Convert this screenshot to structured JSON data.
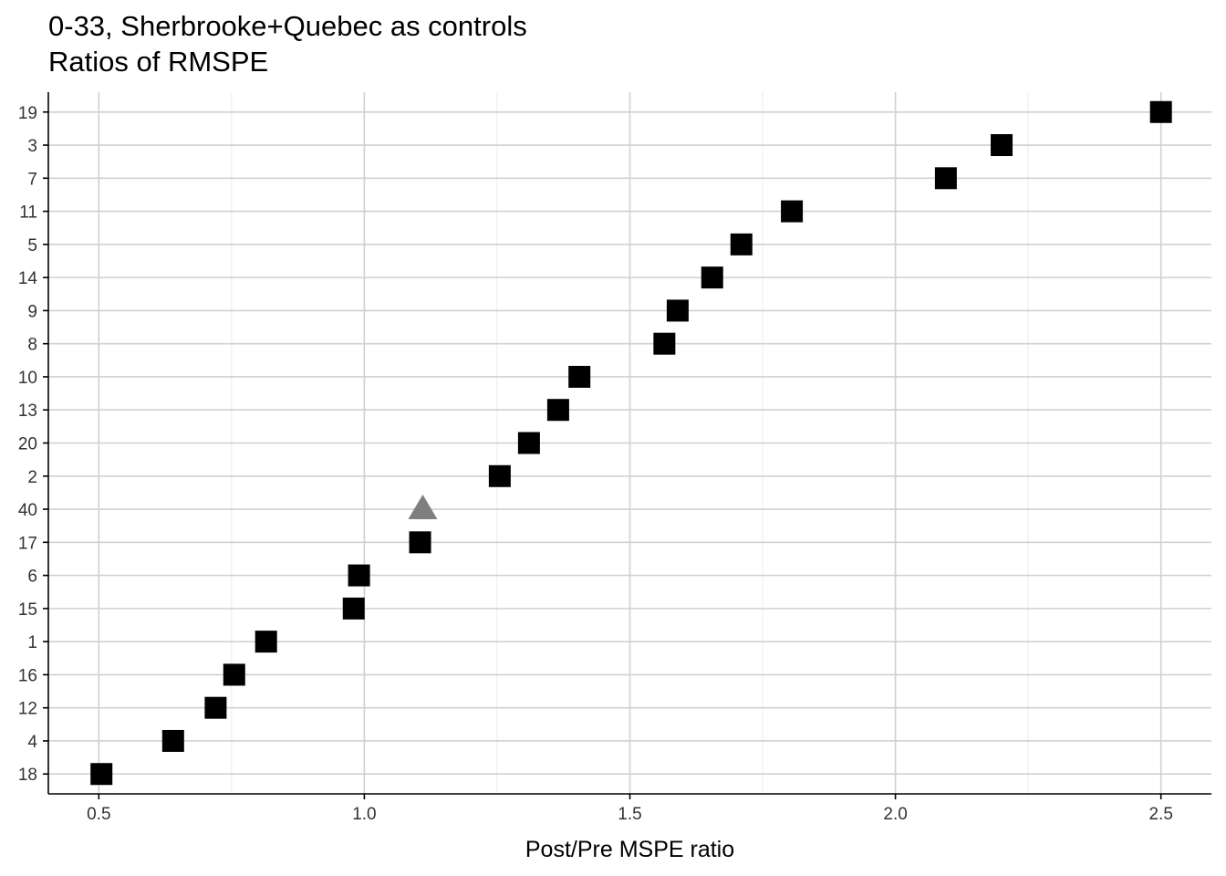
{
  "title": "0-33, Sherbrooke+Quebec as controls",
  "subtitle": "Ratios of RMSPE",
  "colors": {
    "point": "#000000",
    "treated": "#7f7f7f",
    "grid_major": "#d0d0d0",
    "grid_minor": "#ebebeb",
    "axis": "#000000"
  },
  "chart_data": {
    "type": "scatter",
    "title": "0-33, Sherbrooke+Quebec as controls",
    "subtitle": "Ratios of RMSPE",
    "xlabel": "Post/Pre MSPE ratio",
    "ylabel": "",
    "xlim": [
      0.405,
      2.595
    ],
    "x_ticks": [
      0.5,
      1.0,
      1.5,
      2.0,
      2.5
    ],
    "x_tick_labels": [
      "0.5",
      "1.0",
      "1.5",
      "2.0",
      "2.5"
    ],
    "grid": true,
    "legend": "none",
    "categories": [
      "18",
      "4",
      "12",
      "16",
      "1",
      "15",
      "6",
      "17",
      "40",
      "2",
      "20",
      "13",
      "10",
      "8",
      "9",
      "14",
      "5",
      "11",
      "7",
      "3",
      "19"
    ],
    "values": [
      0.505,
      0.64,
      0.72,
      0.755,
      0.815,
      0.98,
      0.99,
      1.105,
      1.11,
      1.255,
      1.31,
      1.365,
      1.405,
      1.565,
      1.59,
      1.655,
      1.71,
      1.805,
      2.095,
      2.2,
      2.5
    ],
    "markers": [
      "square",
      "square",
      "square",
      "square",
      "square",
      "square",
      "square",
      "square",
      "triangle",
      "square",
      "square",
      "square",
      "square",
      "square",
      "square",
      "square",
      "square",
      "square",
      "square",
      "square",
      "square"
    ]
  }
}
